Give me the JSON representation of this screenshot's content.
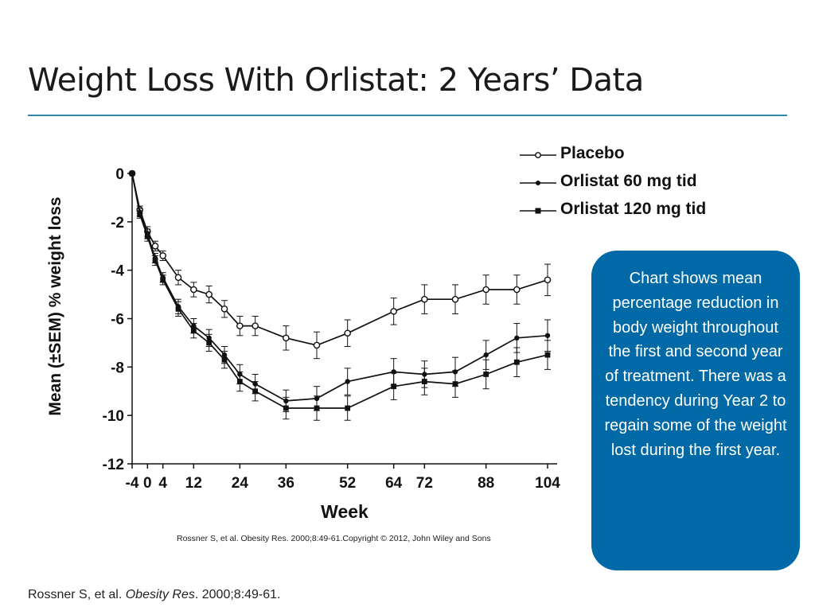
{
  "slide": {
    "title": "Weight Loss With Orlistat: 2 Years’ Data",
    "chart_citation": "Rossner S, et al. Obesity Res. 2000;8:49-61.Copyright © 2012, John Wiley and Sons",
    "callout_text": "Chart shows mean percentage reduction in body weight throughout the first and second year of treatment. There was a tendency during Year 2 to regain some of the weight lost during the first year.",
    "footer_citation": {
      "prefix": "Rossner S, et al. ",
      "journal": "Obesity Res",
      "suffix": ". 2000;8:49-61."
    }
  },
  "chart_data": {
    "type": "line",
    "title": "",
    "xlabel": "Week",
    "ylabel": "Mean (±SEM) % weight loss",
    "xlim": [
      -4,
      104
    ],
    "ylim": [
      -12,
      0
    ],
    "x_ticks": [
      -4,
      0,
      4,
      12,
      24,
      36,
      52,
      64,
      72,
      88,
      104
    ],
    "y_ticks": [
      0,
      -2,
      -4,
      -6,
      -8,
      -10,
      -12
    ],
    "legend_position": "top-right",
    "grid": false,
    "series": [
      {
        "name": "Placebo",
        "marker": "open-circle",
        "x": [
          -4,
          -2,
          0,
          2,
          4,
          8,
          12,
          16,
          20,
          24,
          28,
          36,
          44,
          52,
          64,
          72,
          80,
          88,
          96,
          104
        ],
        "y": [
          0,
          -1.5,
          -2.4,
          -3.0,
          -3.4,
          -4.3,
          -4.8,
          -5.0,
          -5.6,
          -6.3,
          -6.3,
          -6.8,
          -7.1,
          -6.6,
          -5.7,
          -5.2,
          -5.2,
          -4.8,
          -4.8,
          -4.4
        ],
        "err": [
          0.05,
          0.15,
          0.2,
          0.2,
          0.2,
          0.3,
          0.3,
          0.35,
          0.35,
          0.4,
          0.4,
          0.5,
          0.55,
          0.55,
          0.55,
          0.6,
          0.6,
          0.6,
          0.6,
          0.65
        ]
      },
      {
        "name": "Orlistat 60 mg tid",
        "marker": "filled-circle",
        "x": [
          -4,
          -2,
          0,
          2,
          4,
          8,
          12,
          16,
          20,
          24,
          28,
          36,
          44,
          52,
          64,
          72,
          80,
          88,
          96,
          104
        ],
        "y": [
          0,
          -1.6,
          -2.5,
          -3.5,
          -4.3,
          -5.5,
          -6.3,
          -6.8,
          -7.5,
          -8.3,
          -8.7,
          -9.4,
          -9.3,
          -8.6,
          -8.2,
          -8.3,
          -8.2,
          -7.5,
          -6.8,
          -6.7
        ],
        "err": [
          0.05,
          0.15,
          0.2,
          0.2,
          0.2,
          0.3,
          0.3,
          0.35,
          0.35,
          0.4,
          0.4,
          0.45,
          0.5,
          0.55,
          0.55,
          0.55,
          0.6,
          0.6,
          0.6,
          0.65
        ]
      },
      {
        "name": "Orlistat 120 mg tid",
        "marker": "filled-square",
        "x": [
          -4,
          -2,
          0,
          2,
          4,
          8,
          12,
          16,
          20,
          24,
          28,
          36,
          44,
          52,
          64,
          72,
          80,
          88,
          96,
          104
        ],
        "y": [
          0,
          -1.7,
          -2.6,
          -3.6,
          -4.4,
          -5.6,
          -6.5,
          -7.0,
          -7.7,
          -8.6,
          -9.0,
          -9.7,
          -9.7,
          -9.7,
          -8.8,
          -8.6,
          -8.7,
          -8.3,
          -7.8,
          -7.5
        ],
        "err": [
          0.05,
          0.15,
          0.2,
          0.2,
          0.2,
          0.3,
          0.3,
          0.35,
          0.35,
          0.4,
          0.4,
          0.45,
          0.5,
          0.5,
          0.55,
          0.55,
          0.55,
          0.6,
          0.6,
          0.6
        ]
      }
    ]
  }
}
